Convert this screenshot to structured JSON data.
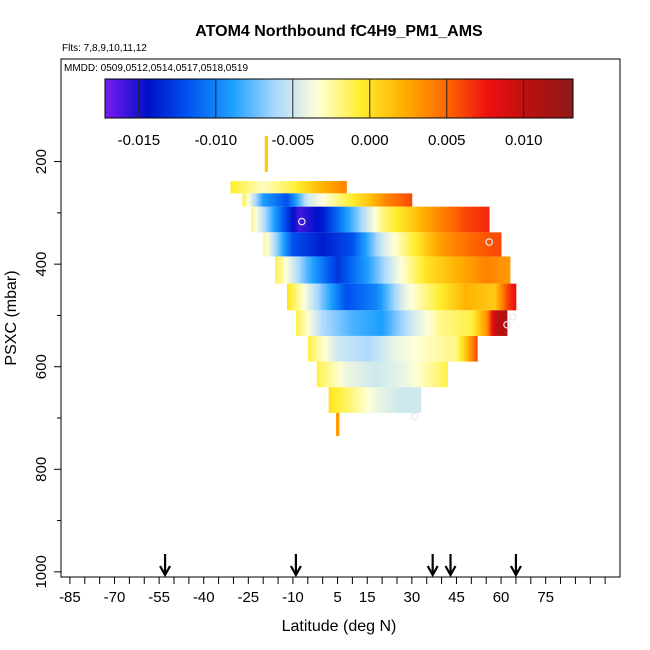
{
  "chart_data": {
    "type": "heatmap",
    "title": "ATOM4 Northbound fC4H9_PM1_AMS",
    "subtitle_flights": "Flts: 7,8,9,10,11,12",
    "subtitle_dates": "MMDD: 0509,0512,0514,0517,0518,0519",
    "xlabel": "Latitude (deg N)",
    "ylabel": "PSXC (mbar)",
    "xlim": [
      -88,
      100
    ],
    "ylim": [
      1010,
      0
    ],
    "x_ticks": [
      -85,
      -70,
      -55,
      -40,
      -25,
      -10,
      5,
      15,
      30,
      45,
      60,
      75
    ],
    "x_tick_labels": [
      "-85",
      "-70",
      "-55",
      "-40",
      "-25",
      "-10",
      "5",
      "15",
      "30",
      "45",
      "60",
      "75"
    ],
    "y_ticks": [
      200,
      400,
      600,
      800,
      1000
    ],
    "y_tick_labels": [
      "200",
      "400",
      "600",
      "800",
      "1000"
    ],
    "colorbar": {
      "range": [
        -0.0172,
        0.0132
      ],
      "ticks": [
        -0.015,
        -0.01,
        -0.005,
        0.0,
        0.005,
        0.01
      ],
      "tick_labels": [
        "-0.015",
        "-0.010",
        "-0.005",
        "0.000",
        "0.005",
        "0.010"
      ],
      "colors": [
        "#7b1cf0",
        "#0010c8",
        "#0058f0",
        "#1ea0ff",
        "#aad8ff",
        "#ffffd8",
        "#ffee30",
        "#ffb000",
        "#ff6a00",
        "#ee1010",
        "#b81010",
        "#8e1a1a"
      ]
    },
    "arrow_latitudes": [
      -53,
      -9,
      37,
      43,
      65
    ],
    "bands": [
      {
        "p0": 238,
        "p1": 262,
        "lat0": -31,
        "lat1": 8,
        "stops": [
          [
            -31,
            -0.0005
          ],
          [
            -20,
            -0.003
          ],
          [
            -10,
            -0.001
          ],
          [
            0,
            0.002
          ],
          [
            8,
            0.004
          ]
        ]
      },
      {
        "p0": 262,
        "p1": 288,
        "lat0": -27,
        "lat1": 30,
        "stops": [
          [
            -27,
            -0.001
          ],
          [
            -20,
            -0.009
          ],
          [
            -12,
            -0.012
          ],
          [
            -5,
            -0.005
          ],
          [
            5,
            -0.002
          ],
          [
            15,
            0.001
          ],
          [
            22,
            0.004
          ],
          [
            30,
            0.006
          ]
        ]
      },
      {
        "p0": 288,
        "p1": 338,
        "lat0": -24,
        "lat1": 56,
        "stops": [
          [
            -24,
            -0.002
          ],
          [
            -15,
            -0.01
          ],
          [
            -8,
            -0.016
          ],
          [
            0,
            -0.014
          ],
          [
            10,
            -0.008
          ],
          [
            20,
            -0.002
          ],
          [
            30,
            0.001
          ],
          [
            40,
            0.004
          ],
          [
            48,
            0.006
          ],
          [
            56,
            0.007
          ]
        ]
      },
      {
        "p0": 338,
        "p1": 385,
        "lat0": -20,
        "lat1": 60,
        "stops": [
          [
            -20,
            -0.002
          ],
          [
            -10,
            -0.012
          ],
          [
            0,
            -0.014
          ],
          [
            10,
            -0.012
          ],
          [
            20,
            -0.005
          ],
          [
            30,
            -0.001
          ],
          [
            40,
            0.003
          ],
          [
            50,
            0.005
          ],
          [
            60,
            0.006
          ]
        ]
      },
      {
        "p0": 385,
        "p1": 438,
        "lat0": -16,
        "lat1": 63,
        "stops": [
          [
            -16,
            -0.001
          ],
          [
            -5,
            -0.008
          ],
          [
            5,
            -0.013
          ],
          [
            15,
            -0.009
          ],
          [
            25,
            -0.004
          ],
          [
            35,
            0.0
          ],
          [
            45,
            0.002
          ],
          [
            55,
            0.004
          ],
          [
            63,
            0.003
          ]
        ]
      },
      {
        "p0": 438,
        "p1": 490,
        "lat0": -12,
        "lat1": 65,
        "stops": [
          [
            -12,
            0.0
          ],
          [
            -2,
            -0.006
          ],
          [
            8,
            -0.012
          ],
          [
            18,
            -0.01
          ],
          [
            28,
            -0.004
          ],
          [
            38,
            -0.001
          ],
          [
            48,
            0.002
          ],
          [
            58,
            0.001
          ],
          [
            62,
            0.006
          ],
          [
            65,
            0.008
          ]
        ]
      },
      {
        "p0": 490,
        "p1": 540,
        "lat0": -9,
        "lat1": 62,
        "stops": [
          [
            -9,
            -0.001
          ],
          [
            0,
            -0.006
          ],
          [
            10,
            -0.008
          ],
          [
            20,
            -0.009
          ],
          [
            30,
            -0.005
          ],
          [
            40,
            -0.002
          ],
          [
            50,
            -0.001
          ],
          [
            55,
            0.003
          ],
          [
            58,
            0.01
          ],
          [
            62,
            0.011
          ]
        ]
      },
      {
        "p0": 540,
        "p1": 590,
        "lat0": -5,
        "lat1": 52,
        "stops": [
          [
            -5,
            -0.001
          ],
          [
            5,
            -0.005
          ],
          [
            15,
            -0.006
          ],
          [
            25,
            -0.004
          ],
          [
            35,
            -0.003
          ],
          [
            45,
            -0.002
          ],
          [
            48,
            0.001
          ],
          [
            52,
            0.006
          ]
        ]
      },
      {
        "p0": 590,
        "p1": 640,
        "lat0": -2,
        "lat1": 42,
        "stops": [
          [
            -2,
            -0.001
          ],
          [
            8,
            -0.004
          ],
          [
            18,
            -0.005
          ],
          [
            28,
            -0.004
          ],
          [
            38,
            -0.002
          ],
          [
            42,
            -0.001
          ]
        ]
      },
      {
        "p0": 640,
        "p1": 690,
        "lat0": 2,
        "lat1": 33,
        "stops": [
          [
            2,
            0.0
          ],
          [
            10,
            -0.002
          ],
          [
            18,
            -0.004
          ],
          [
            26,
            -0.005
          ],
          [
            33,
            -0.005
          ]
        ]
      },
      {
        "p0": 150,
        "p1": 220,
        "lat0": -19.5,
        "lat1": -18.5,
        "stops": [
          [
            -19.5,
            0.001
          ],
          [
            -18.5,
            0.001
          ]
        ]
      },
      {
        "p0": 690,
        "p1": 735,
        "lat0": 4.5,
        "lat1": 5.5,
        "stops": [
          [
            4.5,
            0.003
          ],
          [
            5.5,
            0.003
          ]
        ]
      }
    ],
    "markers": [
      {
        "lat": -7,
        "p": 317
      },
      {
        "lat": 56,
        "p": 357
      },
      {
        "lat": 64,
        "p": 503
      },
      {
        "lat": 62,
        "p": 518
      },
      {
        "lat": 31,
        "p": 697
      }
    ]
  }
}
